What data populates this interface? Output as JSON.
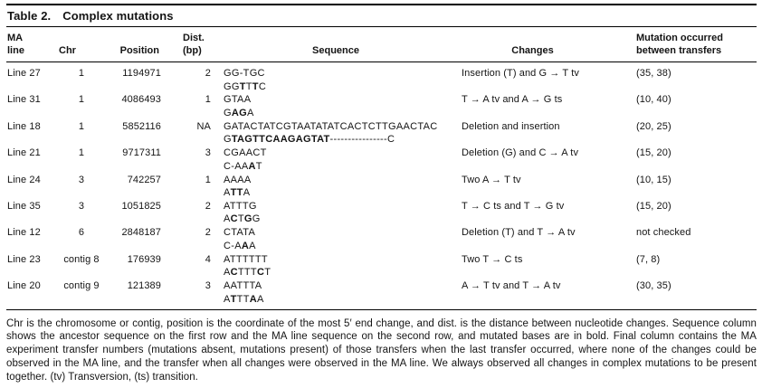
{
  "table": {
    "title": "Table 2.",
    "subtitle": "Complex mutations",
    "columns": {
      "ma_line": "MA\nline",
      "chr": "Chr",
      "position": "Position",
      "dist": "Dist.\n(bp)",
      "sequence": "Sequence",
      "changes": "Changes",
      "transfers": "Mutation occurred\nbetween transfers"
    },
    "rows": [
      {
        "ma_line": "Line 27",
        "chr": "1",
        "position": "1194971",
        "dist": "2",
        "ancestor": "GG-TGC",
        "ma_seq": [
          {
            "t": "GG",
            "b": false
          },
          {
            "t": "T",
            "b": true
          },
          {
            "t": "T",
            "b": false
          },
          {
            "t": "T",
            "b": true
          },
          {
            "t": "C",
            "b": false
          }
        ],
        "changes": "Insertion (T) and G → T tv",
        "transfers": "(35, 38)"
      },
      {
        "ma_line": "Line 31",
        "chr": "1",
        "position": "4086493",
        "dist": "1",
        "ancestor": "GTAA",
        "ma_seq": [
          {
            "t": "G",
            "b": false
          },
          {
            "t": "AG",
            "b": true
          },
          {
            "t": "A",
            "b": false
          }
        ],
        "changes": "T → A tv and A → G ts",
        "transfers": "(10, 40)"
      },
      {
        "ma_line": "Line 18",
        "chr": "1",
        "position": "5852116",
        "dist": "NA",
        "ancestor": "GATACTATCGTAATATATCACTCTTGAACTAC",
        "ma_seq": [
          {
            "t": "G",
            "b": false
          },
          {
            "t": "TAGTTCAAGAGTAT",
            "b": true
          },
          {
            "t": "----------------C",
            "b": false
          }
        ],
        "changes": "Deletion and insertion",
        "transfers": "(20, 25)"
      },
      {
        "ma_line": "Line 21",
        "chr": "1",
        "position": "9717311",
        "dist": "3",
        "ancestor": "CGAACT",
        "ma_seq": [
          {
            "t": "C-AA",
            "b": false
          },
          {
            "t": "A",
            "b": true
          },
          {
            "t": "T",
            "b": false
          }
        ],
        "changes": "Deletion (G) and C → A tv",
        "transfers": "(15, 20)"
      },
      {
        "ma_line": "Line 24",
        "chr": "3",
        "position": "742257",
        "dist": "1",
        "ancestor": "AAAA",
        "ma_seq": [
          {
            "t": "A",
            "b": false
          },
          {
            "t": "TT",
            "b": true
          },
          {
            "t": "A",
            "b": false
          }
        ],
        "changes": "Two A → T tv",
        "transfers": "(10, 15)"
      },
      {
        "ma_line": "Line 35",
        "chr": "3",
        "position": "1051825",
        "dist": "2",
        "ancestor": "ATTTG",
        "ma_seq": [
          {
            "t": "A",
            "b": false
          },
          {
            "t": "C",
            "b": true
          },
          {
            "t": "T",
            "b": false
          },
          {
            "t": "G",
            "b": true
          },
          {
            "t": "G",
            "b": false
          }
        ],
        "changes": "T → C ts and T → G tv",
        "transfers": "(15, 20)"
      },
      {
        "ma_line": "Line 12",
        "chr": "6",
        "position": "2848187",
        "dist": "2",
        "ancestor": "CTATA",
        "ma_seq": [
          {
            "t": "C-A",
            "b": false
          },
          {
            "t": "A",
            "b": true
          },
          {
            "t": "A",
            "b": false
          }
        ],
        "changes": "Deletion (T) and T → A tv",
        "transfers": "not checked"
      },
      {
        "ma_line": "Line 23",
        "chr": "contig 8",
        "position": "176939",
        "dist": "4",
        "ancestor": "ATTTTTT",
        "ma_seq": [
          {
            "t": "A",
            "b": false
          },
          {
            "t": "C",
            "b": true
          },
          {
            "t": "TTT",
            "b": false
          },
          {
            "t": "C",
            "b": true
          },
          {
            "t": "T",
            "b": false
          }
        ],
        "changes": "Two T → C ts",
        "transfers": "(7, 8)"
      },
      {
        "ma_line": "Line 20",
        "chr": "contig 9",
        "position": "121389",
        "dist": "3",
        "ancestor": "AATTTA",
        "ma_seq": [
          {
            "t": "A",
            "b": false
          },
          {
            "t": "T",
            "b": true
          },
          {
            "t": "TT",
            "b": false
          },
          {
            "t": "A",
            "b": true
          },
          {
            "t": "A",
            "b": false
          }
        ],
        "changes": "A → T tv and T → A tv",
        "transfers": "(30, 35)"
      }
    ],
    "footnote": "Chr is the chromosome or contig, position is the coordinate of the most 5′ end change, and dist. is the distance between nucleotide changes. Sequence column shows the ancestor sequence on the first row and the MA line sequence on the second row, and mutated bases are in bold. Final column contains the MA experiment transfer numbers (mutations absent, mutations present) of those transfers when the last transfer occurred, where none of the changes could be observed in the MA line, and the transfer when all changes were observed in the MA line. We always observed all changes in complex mutations to be present together. (tv) Transversion, (ts) transition."
  }
}
